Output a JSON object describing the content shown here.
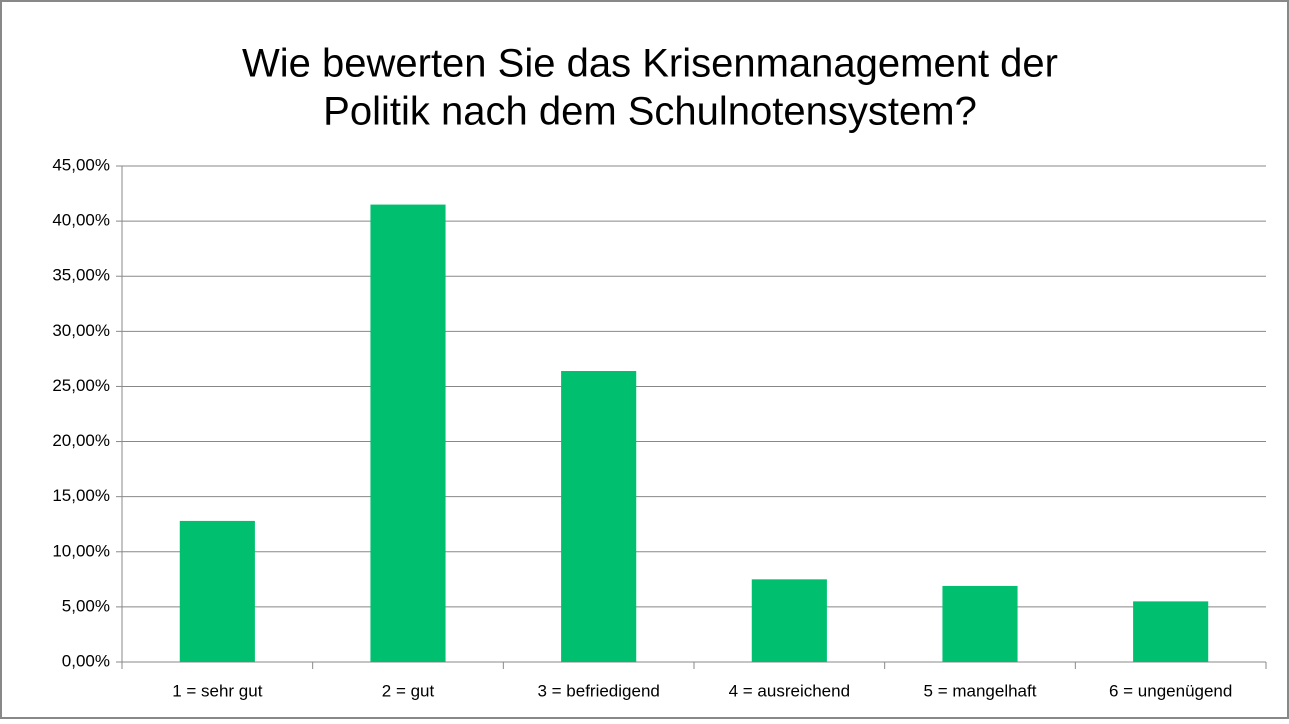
{
  "chart_data": {
    "type": "bar",
    "title": [
      "Wie bewerten Sie das Krisenmanagement der",
      "Politik nach dem Schulnotensystem?"
    ],
    "categories": [
      "1 = sehr gut",
      "2 = gut",
      "3 = befriedigend",
      "4 = ausreichend",
      "5 = mangelhaft",
      "6 = ungenügend"
    ],
    "values": [
      12.8,
      41.5,
      26.4,
      7.5,
      6.9,
      5.5
    ],
    "color": "#00c070",
    "ylim": [
      0,
      45
    ],
    "yticks": [
      {
        "value": 0,
        "label": "0,00%"
      },
      {
        "value": 5,
        "label": "5,00%"
      },
      {
        "value": 10,
        "label": "10,00%"
      },
      {
        "value": 15,
        "label": "15,00%"
      },
      {
        "value": 20,
        "label": "20,00%"
      },
      {
        "value": 25,
        "label": "25,00%"
      },
      {
        "value": 30,
        "label": "30,00%"
      },
      {
        "value": 35,
        "label": "35,00%"
      },
      {
        "value": 40,
        "label": "40,00%"
      },
      {
        "value": 45,
        "label": "45,00%"
      }
    ],
    "grid": true
  }
}
